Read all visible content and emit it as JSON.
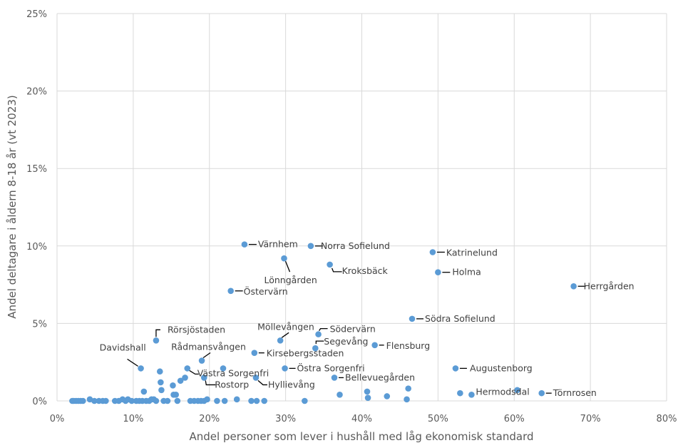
{
  "chart_data": {
    "type": "scatter",
    "xlabel": "Andel personer som lever i hushåll med låg ekonomisk standard",
    "ylabel": "Andel deltagare i åldern 8-18 år (vt 2023)",
    "xlim": [
      0,
      0.8
    ],
    "ylim": [
      0,
      0.25
    ],
    "x_ticks": [
      0,
      0.1,
      0.2,
      0.3,
      0.4,
      0.5,
      0.6,
      0.7,
      0.8
    ],
    "x_tick_labels": [
      "0%",
      "10%",
      "20%",
      "30%",
      "40%",
      "50%",
      "60%",
      "70%",
      "80%"
    ],
    "y_ticks": [
      0,
      0.05,
      0.1,
      0.15,
      0.2,
      0.25
    ],
    "y_tick_labels": [
      "0%",
      "5%",
      "10%",
      "15%",
      "20%",
      "25%"
    ],
    "grid": "vertical and horizontal major gridlines",
    "legend": "none",
    "point_color": "#5b9bd5",
    "labeled_points": [
      {
        "name": "Värnhem",
        "x": 0.246,
        "y": 0.101
      },
      {
        "name": "Norra Sofielund",
        "x": 0.333,
        "y": 0.1
      },
      {
        "name": "Lönngården",
        "x": 0.298,
        "y": 0.092
      },
      {
        "name": "Kroksbäck",
        "x": 0.358,
        "y": 0.088
      },
      {
        "name": "Katrinelund",
        "x": 0.493,
        "y": 0.096
      },
      {
        "name": "Holma",
        "x": 0.5,
        "y": 0.083
      },
      {
        "name": "Herrgården",
        "x": 0.678,
        "y": 0.074
      },
      {
        "name": "Östervärn",
        "x": 0.228,
        "y": 0.071
      },
      {
        "name": "Södra Sofielund",
        "x": 0.466,
        "y": 0.053
      },
      {
        "name": "Rörsjöstaden",
        "x": 0.13,
        "y": 0.039
      },
      {
        "name": "Möllevången",
        "x": 0.293,
        "y": 0.039
      },
      {
        "name": "Södervärn",
        "x": 0.343,
        "y": 0.043
      },
      {
        "name": "Segevång",
        "x": 0.339,
        "y": 0.034
      },
      {
        "name": "Flensburg",
        "x": 0.417,
        "y": 0.036
      },
      {
        "name": "Kirsebergsstaden",
        "x": 0.259,
        "y": 0.031
      },
      {
        "name": "Rådmansvången",
        "x": 0.19,
        "y": 0.026
      },
      {
        "name": "Davidshall",
        "x": 0.11,
        "y": 0.021
      },
      {
        "name": "Västra Sorgenfri",
        "x": 0.171,
        "y": 0.021
      },
      {
        "name": "Östra Sorgenfri",
        "x": 0.299,
        "y": 0.021
      },
      {
        "name": "Augustenborg",
        "x": 0.523,
        "y": 0.021
      },
      {
        "name": "Bellevuegården",
        "x": 0.364,
        "y": 0.015
      },
      {
        "name": "Rostorp",
        "x": 0.193,
        "y": 0.015
      },
      {
        "name": "Hyllievång",
        "x": 0.261,
        "y": 0.015
      },
      {
        "name": "Törnrosen",
        "x": 0.636,
        "y": 0.005
      },
      {
        "name": "Hermodsdal",
        "x": 0.544,
        "y": 0.004
      }
    ],
    "unlabeled_points": [
      {
        "x": 0.02,
        "y": 0.0
      },
      {
        "x": 0.022,
        "y": 0.0
      },
      {
        "x": 0.025,
        "y": 0.0
      },
      {
        "x": 0.028,
        "y": 0.0
      },
      {
        "x": 0.031,
        "y": 0.0
      },
      {
        "x": 0.034,
        "y": 0.0
      },
      {
        "x": 0.043,
        "y": 0.001
      },
      {
        "x": 0.049,
        "y": 0.0
      },
      {
        "x": 0.055,
        "y": 0.0
      },
      {
        "x": 0.06,
        "y": 0.0
      },
      {
        "x": 0.064,
        "y": 0.0
      },
      {
        "x": 0.076,
        "y": 0.0
      },
      {
        "x": 0.081,
        "y": 0.0
      },
      {
        "x": 0.086,
        "y": 0.001
      },
      {
        "x": 0.09,
        "y": 0.0
      },
      {
        "x": 0.093,
        "y": 0.001
      },
      {
        "x": 0.098,
        "y": 0.0
      },
      {
        "x": 0.104,
        "y": 0.0
      },
      {
        "x": 0.108,
        "y": 0.0
      },
      {
        "x": 0.112,
        "y": 0.0
      },
      {
        "x": 0.114,
        "y": 0.006
      },
      {
        "x": 0.117,
        "y": 0.0
      },
      {
        "x": 0.121,
        "y": 0.0
      },
      {
        "x": 0.124,
        "y": 0.001
      },
      {
        "x": 0.127,
        "y": 0.001
      },
      {
        "x": 0.13,
        "y": 0.0
      },
      {
        "x": 0.135,
        "y": 0.019
      },
      {
        "x": 0.136,
        "y": 0.012
      },
      {
        "x": 0.137,
        "y": 0.007
      },
      {
        "x": 0.14,
        "y": 0.0
      },
      {
        "x": 0.145,
        "y": 0.0
      },
      {
        "x": 0.152,
        "y": 0.01
      },
      {
        "x": 0.153,
        "y": 0.004
      },
      {
        "x": 0.156,
        "y": 0.004
      },
      {
        "x": 0.158,
        "y": 0.0
      },
      {
        "x": 0.162,
        "y": 0.013
      },
      {
        "x": 0.168,
        "y": 0.015
      },
      {
        "x": 0.175,
        "y": 0.0
      },
      {
        "x": 0.18,
        "y": 0.0
      },
      {
        "x": 0.185,
        "y": 0.0
      },
      {
        "x": 0.189,
        "y": 0.0
      },
      {
        "x": 0.193,
        "y": 0.0
      },
      {
        "x": 0.197,
        "y": 0.001
      },
      {
        "x": 0.21,
        "y": 0.0
      },
      {
        "x": 0.218,
        "y": 0.021
      },
      {
        "x": 0.22,
        "y": 0.0
      },
      {
        "x": 0.236,
        "y": 0.001
      },
      {
        "x": 0.255,
        "y": 0.0
      },
      {
        "x": 0.262,
        "y": 0.0
      },
      {
        "x": 0.272,
        "y": 0.0
      },
      {
        "x": 0.325,
        "y": 0.0
      },
      {
        "x": 0.371,
        "y": 0.004
      },
      {
        "x": 0.407,
        "y": 0.006
      },
      {
        "x": 0.408,
        "y": 0.002
      },
      {
        "x": 0.433,
        "y": 0.003
      },
      {
        "x": 0.459,
        "y": 0.001
      },
      {
        "x": 0.461,
        "y": 0.008
      },
      {
        "x": 0.529,
        "y": 0.005
      },
      {
        "x": 0.604,
        "y": 0.007
      }
    ]
  }
}
